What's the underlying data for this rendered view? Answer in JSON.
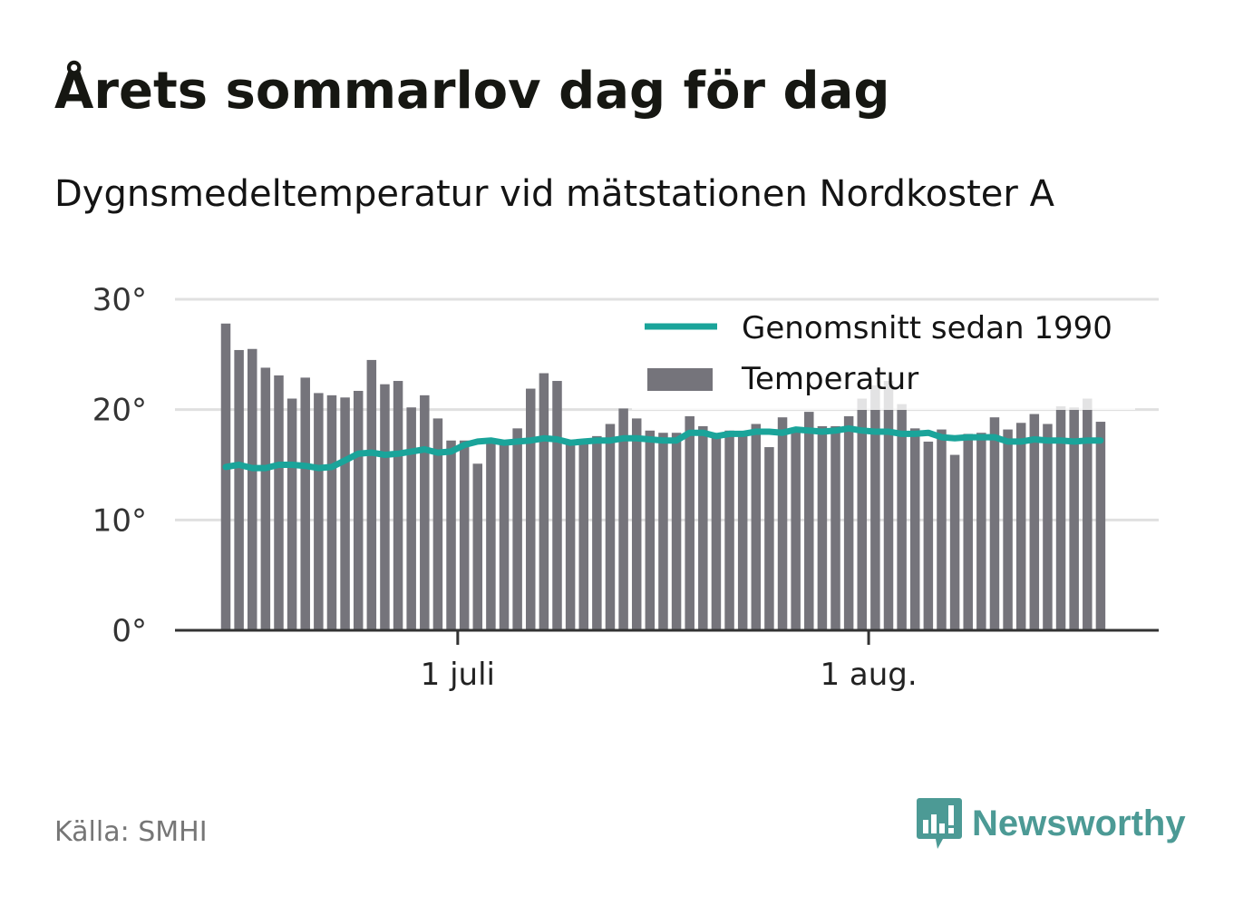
{
  "header": {
    "title": "Årets sommarlov dag för dag",
    "subtitle": "Dygnsmedeltemperatur vid mätstationen Nordkoster A"
  },
  "footer": {
    "source": "Källa: SMHI",
    "brand": "Newsworthy"
  },
  "colors": {
    "bar": "#75747b",
    "line": "#1aa49a",
    "grid": "#e0e0e0",
    "axis": "#333333",
    "brand": "#4c9a95"
  },
  "icons": {
    "brand_logo": "bar-chart-speech-bubble-icon"
  },
  "chart_data": {
    "type": "bar",
    "x_start": "2023-06-13",
    "x_ticks": [
      {
        "date": "2023-07-01",
        "label": "1 juli"
      },
      {
        "date": "2023-08-01",
        "label": "1 aug."
      }
    ],
    "y_ticks": [
      {
        "value": 0,
        "label": "0°"
      },
      {
        "value": 10,
        "label": "10°"
      },
      {
        "value": 20,
        "label": "20°"
      },
      {
        "value": 30,
        "label": "30°"
      }
    ],
    "ylim": [
      0,
      30
    ],
    "grid": true,
    "legend_position": "top-right",
    "series": [
      {
        "name": "Temperatur",
        "kind": "bar",
        "values": [
          27.8,
          25.4,
          25.5,
          23.8,
          23.1,
          21.0,
          22.9,
          21.5,
          21.3,
          21.1,
          21.7,
          24.5,
          22.3,
          22.6,
          20.2,
          21.3,
          19.2,
          17.2,
          17.2,
          15.1,
          17.1,
          17.2,
          18.3,
          21.9,
          23.3,
          22.6,
          16.9,
          17.3,
          17.6,
          18.7,
          20.1,
          19.2,
          18.1,
          17.9,
          17.9,
          19.4,
          18.5,
          17.7,
          18.1,
          17.8,
          18.7,
          16.6,
          19.3,
          18.0,
          19.8,
          18.5,
          18.5,
          19.4,
          21.0,
          22.2,
          22.6,
          20.5,
          18.3,
          17.1,
          18.2,
          15.9,
          17.8,
          17.9,
          19.3,
          18.2,
          18.8,
          19.6,
          18.7,
          20.3,
          20.2,
          21.0,
          18.9
        ]
      },
      {
        "name": "Genomsnitt sedan 1990",
        "kind": "line",
        "values": [
          14.8,
          15.0,
          14.7,
          14.7,
          15.0,
          15.0,
          14.9,
          14.7,
          14.8,
          15.4,
          16.0,
          16.1,
          15.9,
          16.0,
          16.2,
          16.4,
          16.1,
          16.2,
          16.8,
          17.1,
          17.2,
          17.0,
          17.1,
          17.2,
          17.4,
          17.3,
          17.0,
          17.1,
          17.2,
          17.2,
          17.4,
          17.4,
          17.3,
          17.2,
          17.2,
          17.9,
          17.9,
          17.6,
          17.8,
          17.8,
          18.0,
          18.0,
          17.9,
          18.2,
          18.1,
          18.0,
          18.1,
          18.3,
          18.1,
          18.0,
          18.0,
          17.8,
          17.8,
          17.9,
          17.5,
          17.4,
          17.5,
          17.5,
          17.5,
          17.1,
          17.1,
          17.3,
          17.2,
          17.2,
          17.1,
          17.2,
          17.2
        ]
      }
    ]
  }
}
